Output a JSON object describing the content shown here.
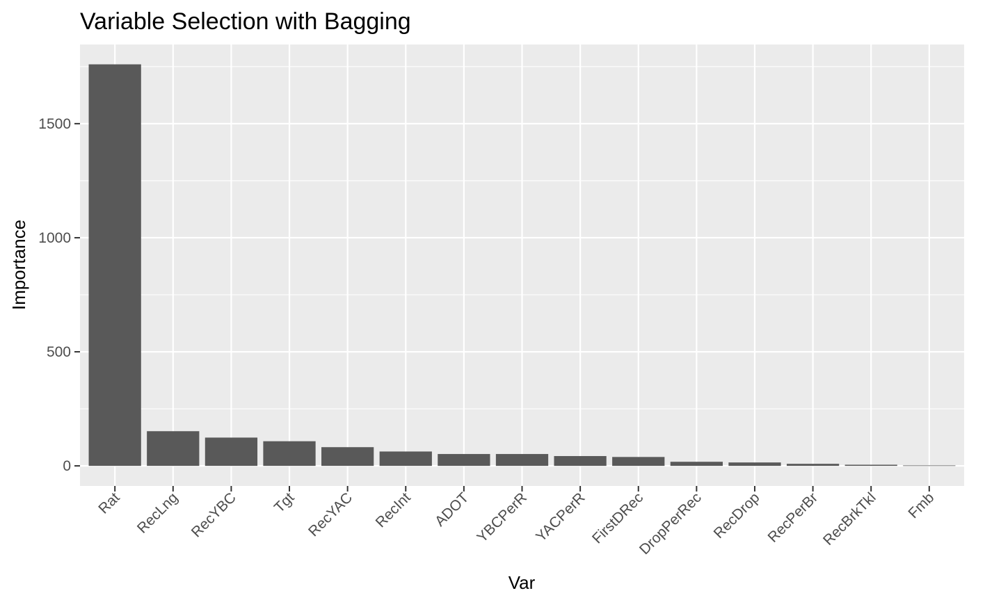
{
  "chart_data": {
    "type": "bar",
    "title": "Variable Selection with Bagging",
    "xlabel": "Var",
    "ylabel": "Importance",
    "categories": [
      "Rat",
      "RecLng",
      "RecYBC",
      "Tgt",
      "RecYAC",
      "RecInt",
      "ADOT",
      "YBCPerR",
      "YACPerR",
      "FirstDRec",
      "DropPerRec",
      "RecDrop",
      "RecPerBr",
      "RecBrkTkl",
      "Fmb"
    ],
    "values": [
      1760,
      152,
      124,
      108,
      82,
      63,
      52,
      52,
      43,
      39,
      18,
      15,
      9,
      5,
      2
    ],
    "yticks": [
      0,
      500,
      1000,
      1500
    ],
    "ylim": [
      -88,
      1847
    ],
    "grid": true,
    "colors": {
      "bar": "#595959",
      "panel": "#ebebeb",
      "grid": "#ffffff"
    }
  }
}
